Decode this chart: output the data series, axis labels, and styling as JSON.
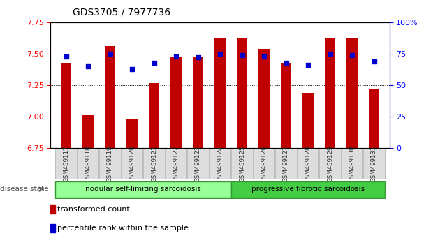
{
  "title": "GDS3705 / 7977736",
  "samples": [
    "GSM499117",
    "GSM499118",
    "GSM499119",
    "GSM499120",
    "GSM499121",
    "GSM499122",
    "GSM499123",
    "GSM499124",
    "GSM499125",
    "GSM499126",
    "GSM499127",
    "GSM499128",
    "GSM499129",
    "GSM499130",
    "GSM499131"
  ],
  "transformed_count": [
    7.42,
    7.01,
    7.56,
    6.98,
    7.27,
    7.48,
    7.48,
    7.63,
    7.63,
    7.54,
    7.43,
    7.19,
    7.63,
    7.63,
    7.22
  ],
  "percentile_rank": [
    73,
    65,
    75,
    63,
    68,
    73,
    72,
    75,
    74,
    73,
    68,
    66,
    75,
    74,
    69
  ],
  "bar_color": "#c00000",
  "dot_color": "#0000cc",
  "ylim_left": [
    6.75,
    7.75
  ],
  "ylim_right": [
    0,
    100
  ],
  "yticks_left": [
    6.75,
    7.0,
    7.25,
    7.5,
    7.75
  ],
  "yticks_right": [
    0,
    25,
    50,
    75,
    100
  ],
  "group1_label": "nodular self-limiting sarcoidosis",
  "group1_count": 8,
  "group2_label": "progressive fibrotic sarcoidosis",
  "group2_count": 7,
  "group1_color": "#99ff99",
  "group2_color": "#44cc44",
  "disease_state_label": "disease state",
  "legend1": "transformed count",
  "legend2": "percentile rank within the sample",
  "bar_bottom": 6.75
}
